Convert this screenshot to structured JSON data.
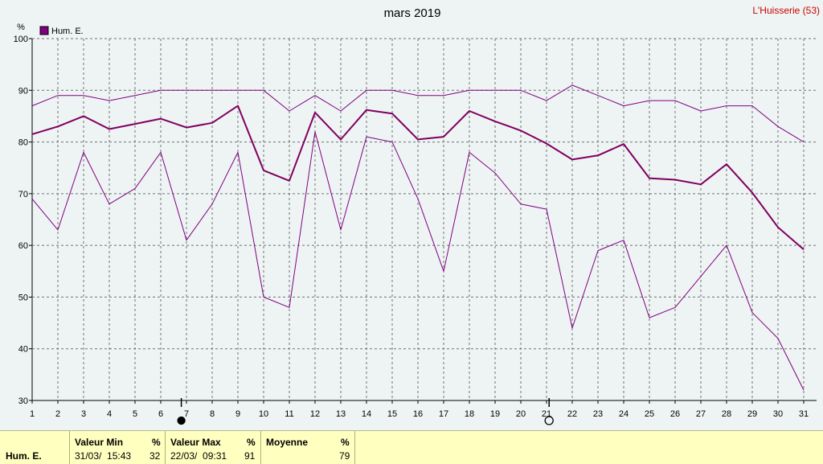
{
  "header": {
    "title": "mars 2019",
    "station": "L'Huisserie (53)"
  },
  "chart_data": {
    "type": "line",
    "title": "mars 2019",
    "ylabel": "%",
    "ylim": [
      30,
      100
    ],
    "yticks": [
      30,
      40,
      50,
      60,
      70,
      80,
      90,
      100
    ],
    "x": [
      1,
      2,
      3,
      4,
      5,
      6,
      7,
      8,
      9,
      10,
      11,
      12,
      13,
      14,
      15,
      16,
      17,
      18,
      19,
      20,
      21,
      22,
      23,
      24,
      25,
      26,
      27,
      28,
      29,
      30,
      31
    ],
    "grid": true,
    "legend_position": "top-left",
    "series": [
      {
        "name": "Hum. E.",
        "role": "max",
        "color": "#800080",
        "values": [
          87,
          89,
          89,
          88,
          89,
          90,
          90,
          90,
          90,
          90,
          86,
          89,
          86,
          90,
          90,
          89,
          89,
          90,
          90,
          90,
          88,
          91,
          89,
          87,
          88,
          88,
          86,
          87,
          87,
          83,
          80
        ]
      },
      {
        "name": "Hum. E.",
        "role": "mean",
        "color": "#800060",
        "values": [
          81.5,
          83,
          85,
          82.5,
          83.5,
          84.5,
          82.8,
          83.7,
          87,
          74.5,
          72.5,
          85.7,
          80.5,
          86.2,
          85.5,
          80.5,
          81,
          86,
          84,
          82.2,
          79.7,
          76.6,
          77.4,
          79.6,
          73,
          72.7,
          71.8,
          75.7,
          70.2,
          63.5,
          59.2
        ]
      },
      {
        "name": "Hum. E.",
        "role": "min",
        "color": "#800080",
        "values": [
          69,
          63,
          78,
          68,
          71,
          78,
          61,
          68,
          78,
          50,
          48,
          82,
          63,
          81,
          80,
          69,
          55,
          78,
          74,
          68,
          67,
          44,
          59,
          61,
          46,
          48,
          54,
          60,
          47,
          42,
          32
        ]
      }
    ],
    "moon_phases": [
      {
        "day": 6.8,
        "phase": "new-moon"
      },
      {
        "day": 21.1,
        "phase": "full-moon"
      }
    ]
  },
  "summary": {
    "row_label": "Hum. E.",
    "min": {
      "header": "Valeur Min",
      "unit": "%",
      "when": "31/03/  15:43",
      "value": "32"
    },
    "max": {
      "header": "Valeur Max",
      "unit": "%",
      "when": "22/03/  09:31",
      "value": "91"
    },
    "avg": {
      "header": "Moyenne",
      "unit": "%",
      "value": "79"
    }
  }
}
